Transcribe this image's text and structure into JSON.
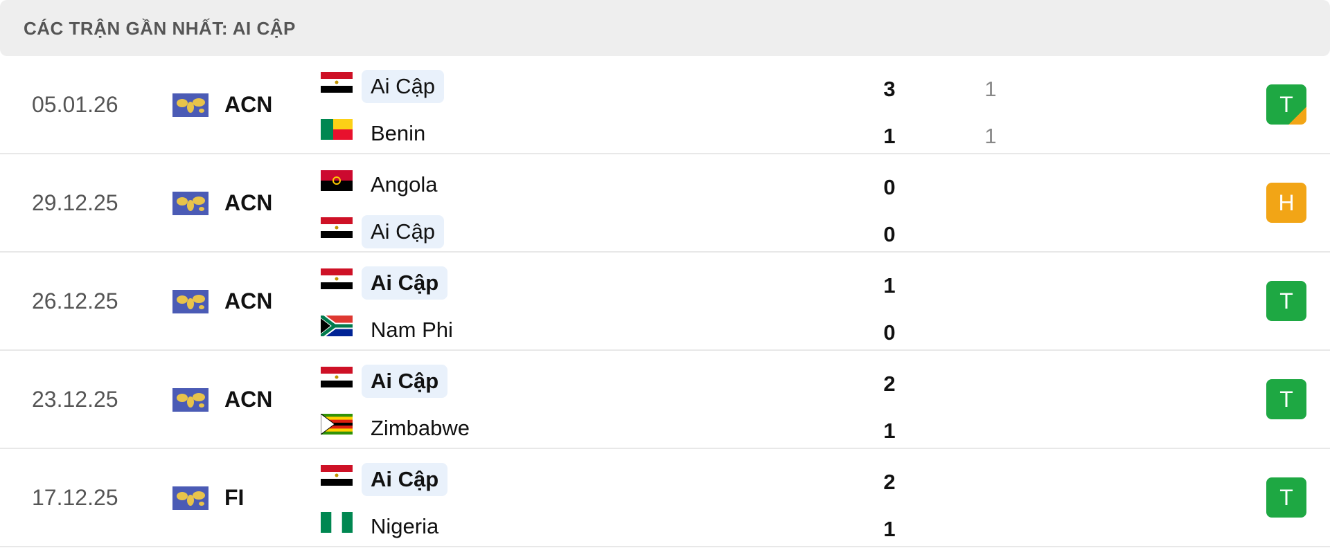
{
  "header": {
    "title": "CÁC TRẬN GẦN NHẤT: AI CẬP"
  },
  "matches": [
    {
      "date": "05.01.26",
      "competition": "ACN",
      "home": {
        "team": "Ai Cập",
        "score": 3,
        "extra": 1
      },
      "away": {
        "team": "Benin",
        "score": 1,
        "extra": 1
      },
      "result": "T"
    },
    {
      "date": "29.12.25",
      "competition": "ACN",
      "home": {
        "team": "Angola",
        "score": 0
      },
      "away": {
        "team": "Ai Cập",
        "score": 0
      },
      "result": "H"
    },
    {
      "date": "26.12.25",
      "competition": "ACN",
      "home": {
        "team": "Ai Cập",
        "score": 1
      },
      "away": {
        "team": "Nam Phi",
        "score": 0
      },
      "result": "T"
    },
    {
      "date": "23.12.25",
      "competition": "ACN",
      "home": {
        "team": "Ai Cập",
        "score": 2
      },
      "away": {
        "team": "Zimbabwe",
        "score": 1
      },
      "result": "T"
    },
    {
      "date": "17.12.25",
      "competition": "FI",
      "home": {
        "team": "Ai Cập",
        "score": 2
      },
      "away": {
        "team": "Nigeria",
        "score": 1
      },
      "result": "T"
    }
  ]
}
